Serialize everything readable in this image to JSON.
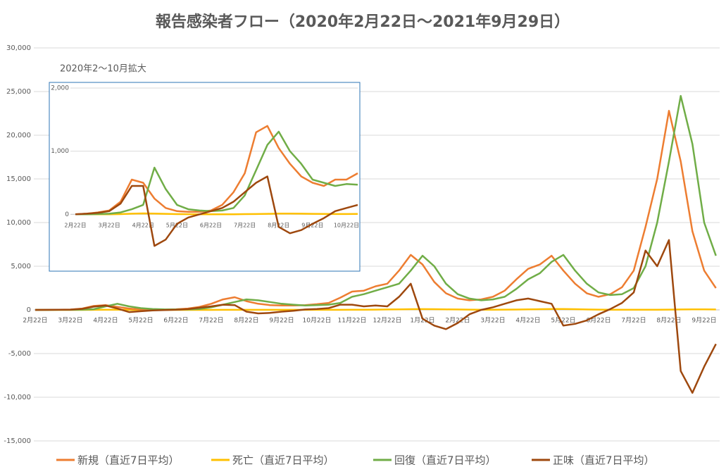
{
  "chart_data": [
    {
      "type": "line",
      "title": "報告感染者フロー（2020年2月22日～2021年9月29日）",
      "categories": [
        "2月22日",
        null,
        null,
        "3月22日",
        null,
        null,
        "4月22日",
        null,
        null,
        "5月22日",
        null,
        null,
        "6月22日",
        null,
        null,
        "7月22日",
        null,
        null,
        "8月22日",
        null,
        null,
        "9月22日",
        null,
        null,
        "10月22日",
        null,
        null,
        "11月22日",
        null,
        null,
        "12月22日",
        null,
        null,
        "1月22日",
        null,
        null,
        "2月22日",
        null,
        null,
        "3月22日",
        null,
        null,
        "4月22日",
        null,
        null,
        "5月22日",
        null,
        null,
        "6月22日",
        null,
        null,
        "7月22日",
        null,
        null,
        "8月22日",
        null,
        null,
        "9月22日",
        null
      ],
      "series": [
        {
          "name": "新規（直近7日平均）",
          "color": "#ED7D31",
          "values": [
            0,
            5,
            20,
            40,
            150,
            450,
            550,
            350,
            150,
            50,
            40,
            40,
            70,
            150,
            350,
            700,
            1200,
            1450,
            1000,
            700,
            550,
            500,
            500,
            550,
            650,
            800,
            1400,
            2100,
            2200,
            2700,
            3000,
            4500,
            6300,
            5200,
            3200,
            1900,
            1300,
            1100,
            1200,
            1500,
            2200,
            3500,
            4700,
            5200,
            6200,
            4500,
            3000,
            1900,
            1500,
            1800,
            2600,
            4500,
            9500,
            15000,
            22800,
            17000,
            9000,
            4500,
            2500
          ]
        },
        {
          "name": "死亡（直近7日平均）",
          "color": "#FFC000",
          "values": [
            0,
            0,
            0,
            1,
            3,
            10,
            20,
            15,
            8,
            4,
            2,
            1,
            1,
            1,
            1,
            3,
            5,
            8,
            12,
            12,
            10,
            8,
            6,
            5,
            5,
            6,
            10,
            20,
            25,
            35,
            45,
            60,
            80,
            90,
            80,
            60,
            45,
            35,
            25,
            25,
            30,
            40,
            60,
            80,
            100,
            100,
            80,
            50,
            30,
            20,
            15,
            15,
            15,
            20,
            30,
            50,
            60,
            60,
            50
          ]
        },
        {
          "name": "回復（直近7日平均）",
          "color": "#70AD47",
          "values": [
            0,
            0,
            5,
            10,
            30,
            80,
            400,
            700,
            400,
            200,
            100,
            60,
            50,
            60,
            100,
            300,
            600,
            900,
            1200,
            1100,
            900,
            700,
            600,
            500,
            550,
            600,
            800,
            1500,
            1800,
            2200,
            2600,
            3000,
            4500,
            6200,
            5000,
            3000,
            1800,
            1300,
            1100,
            1200,
            1500,
            2400,
            3500,
            4200,
            5500,
            6300,
            4500,
            3000,
            2000,
            1700,
            1800,
            2500,
            5000,
            10000,
            17000,
            24500,
            19000,
            10000,
            6200
          ]
        },
        {
          "name": "正味（直近7日平均）",
          "color": "#9E480E",
          "values": [
            0,
            5,
            15,
            30,
            120,
            370,
            500,
            150,
            -250,
            -150,
            -60,
            -20,
            20,
            90,
            250,
            400,
            600,
            550,
            -200,
            -400,
            -350,
            -200,
            -100,
            50,
            100,
            200,
            600,
            600,
            400,
            500,
            400,
            1500,
            3000,
            -1000,
            -1800,
            -2200,
            -1500,
            -500,
            0,
            300,
            700,
            1100,
            1300,
            1000,
            700,
            -1800,
            -1600,
            -1200,
            -500,
            100,
            800,
            2000,
            6800,
            5000,
            8000,
            -7000,
            -9500,
            -6500,
            -3900
          ]
        }
      ],
      "ylim": [
        -15000,
        30000
      ],
      "yticks": [
        {
          "value": -15000,
          "label": "-15,000"
        },
        {
          "value": -10000,
          "label": "-10,000"
        },
        {
          "value": -5000,
          "label": "-5,000"
        },
        0,
        {
          "value": 5000,
          "label": "5,000"
        },
        {
          "value": 10000,
          "label": "10,000"
        },
        {
          "value": 15000,
          "label": "15,000"
        },
        {
          "value": 20000,
          "label": "20,000"
        },
        {
          "value": 25000,
          "label": "25,000"
        },
        {
          "value": 30000,
          "label": "30,000"
        }
      ],
      "grid": true,
      "negative_tick_color": "#FF0000",
      "legend": "bottom"
    },
    {
      "type": "line",
      "title": "2020年2～10月拡大",
      "categories": [
        "2月22日",
        null,
        null,
        "3月22日",
        null,
        null,
        "4月22日",
        null,
        null,
        "5月22日",
        null,
        null,
        "6月22日",
        null,
        null,
        "7月22日",
        null,
        null,
        "8月22日",
        null,
        null,
        "9月22日",
        null,
        null,
        "10月22日",
        null
      ],
      "series": [
        {
          "color": "#ED7D31",
          "values": [
            0,
            10,
            30,
            60,
            200,
            550,
            500,
            250,
            100,
            50,
            40,
            40,
            60,
            150,
            350,
            650,
            1300,
            1400,
            1050,
            800,
            600,
            500,
            450,
            550,
            550,
            650
          ]
        },
        {
          "color": "#FFC000",
          "values": [
            0,
            0,
            0,
            1,
            3,
            10,
            15,
            12,
            8,
            4,
            2,
            1,
            1,
            1,
            1,
            3,
            5,
            8,
            12,
            12,
            10,
            8,
            6,
            5,
            5,
            6
          ]
        },
        {
          "color": "#70AD47",
          "values": [
            0,
            0,
            5,
            10,
            30,
            80,
            150,
            740,
            400,
            150,
            80,
            60,
            50,
            60,
            100,
            300,
            700,
            1100,
            1310,
            1000,
            800,
            550,
            500,
            450,
            480,
            470
          ]
        },
        {
          "color": "#9E480E",
          "values": [
            0,
            10,
            25,
            50,
            170,
            450,
            450,
            -500,
            -400,
            -150,
            -50,
            0,
            50,
            100,
            200,
            350,
            500,
            600,
            -200,
            -300,
            -250,
            -150,
            -60,
            50,
            100,
            150
          ]
        }
      ],
      "ylim": [
        -900,
        2000
      ],
      "yticks": [
        0,
        {
          "value": 1000,
          "label": "1,000"
        },
        {
          "value": 2000,
          "label": "2,000"
        }
      ],
      "grid": true
    }
  ]
}
